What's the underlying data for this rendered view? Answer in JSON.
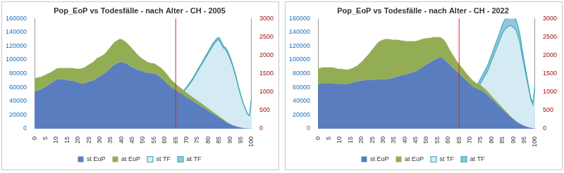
{
  "chart_data": [
    {
      "type": "area",
      "title": "Pop_EoP vs Todesfälle - nach Alter - CH - 2005",
      "x": [
        0,
        1,
        2,
        3,
        4,
        5,
        6,
        7,
        8,
        9,
        10,
        11,
        12,
        13,
        14,
        15,
        16,
        17,
        18,
        19,
        20,
        21,
        22,
        23,
        24,
        25,
        26,
        27,
        28,
        29,
        30,
        31,
        32,
        33,
        34,
        35,
        36,
        37,
        38,
        39,
        40,
        41,
        42,
        43,
        44,
        45,
        46,
        47,
        48,
        49,
        50,
        51,
        52,
        53,
        54,
        55,
        56,
        57,
        58,
        59,
        60,
        61,
        62,
        63,
        64,
        65,
        66,
        67,
        68,
        69,
        70,
        71,
        72,
        73,
        74,
        75,
        76,
        77,
        78,
        79,
        80,
        81,
        82,
        83,
        84,
        85,
        86,
        87,
        88,
        89,
        90,
        91,
        92,
        93,
        94,
        95,
        96,
        97,
        98,
        99,
        100
      ],
      "xlim": [
        0,
        100
      ],
      "xticks": [
        0,
        5,
        10,
        15,
        20,
        25,
        30,
        35,
        40,
        45,
        50,
        55,
        60,
        65,
        70,
        75,
        80,
        85,
        90,
        95,
        100
      ],
      "ylim": [
        0,
        160000
      ],
      "yticks": [
        0,
        20000,
        40000,
        60000,
        80000,
        100000,
        120000,
        140000,
        160000
      ],
      "y2lim": [
        0,
        3000
      ],
      "y2ticks": [
        0,
        500,
        1000,
        1500,
        2000,
        2500,
        3000
      ],
      "stacked": true,
      "grid": false,
      "legend": "bottom",
      "reference_line": {
        "x": 65,
        "color": "#e02020"
      },
      "series": [
        {
          "name": "st EoP",
          "color": "#5a7dbf",
          "values": [
            54000,
            55000,
            56000,
            57000,
            59000,
            61000,
            63000,
            65000,
            67000,
            69000,
            71000,
            72000,
            72000,
            72000,
            71000,
            71000,
            70000,
            70000,
            69000,
            68000,
            67000,
            66000,
            66000,
            66000,
            67000,
            68000,
            69000,
            70000,
            72000,
            74000,
            76000,
            78000,
            80000,
            82000,
            85000,
            88000,
            91000,
            93000,
            95000,
            96000,
            97000,
            96000,
            95000,
            93000,
            91000,
            89000,
            88000,
            86000,
            85000,
            84000,
            83000,
            82000,
            81000,
            81000,
            80000,
            80000,
            79000,
            77000,
            75000,
            72000,
            69000,
            66000,
            63000,
            60000,
            58000,
            56000,
            54000,
            52000,
            50000,
            48000,
            46000,
            44000,
            42000,
            40000,
            38000,
            36000,
            34000,
            32000,
            30000,
            28000,
            26000,
            24000,
            22000,
            20000,
            18000,
            16000,
            14000,
            12000,
            10000,
            8000,
            6500,
            5000,
            4000,
            3000,
            2200,
            1600,
            1100,
            700,
            450,
            300,
            500
          ]
        },
        {
          "name": "at EoP",
          "color": "#93ad55",
          "values": [
            19000,
            19000,
            19000,
            18000,
            18000,
            17000,
            17000,
            16000,
            16000,
            16000,
            16000,
            16000,
            16000,
            16000,
            17000,
            17000,
            18000,
            18000,
            19000,
            19000,
            20000,
            21000,
            22000,
            23000,
            24000,
            25000,
            26000,
            27000,
            28000,
            29000,
            28000,
            28000,
            28000,
            29000,
            30000,
            31000,
            32000,
            33000,
            33000,
            34000,
            33000,
            32000,
            31000,
            30000,
            29000,
            27000,
            25000,
            23000,
            21000,
            19000,
            18000,
            17000,
            16000,
            15000,
            15000,
            15000,
            14000,
            14000,
            14000,
            14000,
            14000,
            13000,
            12000,
            11000,
            10000,
            9000,
            8500,
            8000,
            7500,
            7000,
            6500,
            6000,
            5800,
            5500,
            5200,
            5000,
            4800,
            4500,
            4200,
            4000,
            3700,
            3400,
            3100,
            2800,
            2500,
            2200,
            1900,
            1600,
            1300,
            1000,
            800,
            600,
            450,
            350,
            250,
            180,
            120,
            80,
            50,
            30,
            40
          ]
        },
        {
          "name": "st TF",
          "color": "#d4ebf3",
          "axis": "y2",
          "values": [
            250,
            20,
            15,
            12,
            10,
            10,
            10,
            10,
            10,
            10,
            10,
            10,
            12,
            14,
            16,
            20,
            25,
            30,
            35,
            40,
            40,
            40,
            40,
            40,
            40,
            40,
            40,
            40,
            45,
            45,
            50,
            50,
            55,
            55,
            60,
            65,
            70,
            75,
            80,
            90,
            100,
            110,
            120,
            130,
            140,
            150,
            170,
            190,
            210,
            230,
            250,
            270,
            300,
            330,
            360,
            390,
            420,
            460,
            500,
            540,
            580,
            600,
            630,
            680,
            730,
            780,
            840,
            900,
            960,
            1030,
            1100,
            1180,
            1260,
            1350,
            1450,
            1550,
            1650,
            1750,
            1850,
            1950,
            2050,
            2150,
            2250,
            2330,
            2400,
            2420,
            2300,
            2200,
            2150,
            2050,
            1900,
            1750,
            1550,
            1350,
            1100,
            900,
            700,
            550,
            400,
            350,
            850
          ]
        },
        {
          "name": "at TF",
          "color": "#8fc8db",
          "axis": "y2",
          "values": [
            4,
            1,
            1,
            1,
            1,
            1,
            1,
            1,
            1,
            1,
            1,
            1,
            1,
            1,
            1,
            1,
            1,
            1,
            1,
            1,
            1,
            1,
            1,
            1,
            1,
            1,
            1,
            1,
            1,
            1,
            1,
            1,
            1,
            1,
            2,
            2,
            2,
            2,
            2,
            2,
            3,
            3,
            3,
            4,
            4,
            4,
            5,
            5,
            6,
            6,
            7,
            7,
            8,
            8,
            9,
            10,
            11,
            12,
            13,
            14,
            15,
            16,
            17,
            18,
            19,
            20,
            22,
            24,
            26,
            28,
            30,
            32,
            34,
            36,
            38,
            40,
            42,
            44,
            46,
            48,
            50,
            52,
            54,
            56,
            58,
            60,
            58,
            56,
            54,
            52,
            50,
            45,
            40,
            35,
            30,
            25,
            20,
            15,
            10,
            8,
            15
          ]
        }
      ]
    },
    {
      "type": "area",
      "title": "Pop_EoP vs Todesfälle - nach Alter - CH - 2022",
      "x": [
        0,
        1,
        2,
        3,
        4,
        5,
        6,
        7,
        8,
        9,
        10,
        11,
        12,
        13,
        14,
        15,
        16,
        17,
        18,
        19,
        20,
        21,
        22,
        23,
        24,
        25,
        26,
        27,
        28,
        29,
        30,
        31,
        32,
        33,
        34,
        35,
        36,
        37,
        38,
        39,
        40,
        41,
        42,
        43,
        44,
        45,
        46,
        47,
        48,
        49,
        50,
        51,
        52,
        53,
        54,
        55,
        56,
        57,
        58,
        59,
        60,
        61,
        62,
        63,
        64,
        65,
        66,
        67,
        68,
        69,
        70,
        71,
        72,
        73,
        74,
        75,
        76,
        77,
        78,
        79,
        80,
        81,
        82,
        83,
        84,
        85,
        86,
        87,
        88,
        89,
        90,
        91,
        92,
        93,
        94,
        95,
        96,
        97,
        98,
        99,
        100
      ],
      "xlim": [
        0,
        100
      ],
      "xticks": [
        0,
        5,
        10,
        15,
        20,
        25,
        30,
        35,
        40,
        45,
        50,
        55,
        60,
        65,
        70,
        75,
        80,
        85,
        90,
        95,
        100
      ],
      "ylim": [
        0,
        160000
      ],
      "yticks": [
        0,
        20000,
        40000,
        60000,
        80000,
        100000,
        120000,
        140000,
        160000
      ],
      "y2lim": [
        0,
        3000
      ],
      "y2ticks": [
        0,
        500,
        1000,
        1500,
        2000,
        2500,
        3000
      ],
      "stacked": true,
      "grid": false,
      "legend": "bottom",
      "reference_line": {
        "x": 65,
        "color": "#e02020"
      },
      "series": [
        {
          "name": "st EoP",
          "color": "#5a7dbf",
          "values": [
            64000,
            65000,
            66000,
            66000,
            66000,
            66000,
            66000,
            66000,
            65000,
            65000,
            65000,
            65000,
            65000,
            65000,
            65000,
            66000,
            67000,
            68000,
            68000,
            69000,
            70000,
            70000,
            71000,
            71000,
            71000,
            71000,
            71000,
            72000,
            72000,
            72000,
            72000,
            72000,
            72000,
            73000,
            73000,
            74000,
            75000,
            76000,
            77000,
            78000,
            78000,
            79000,
            80000,
            81000,
            82000,
            83000,
            85000,
            87000,
            89000,
            91000,
            93000,
            95000,
            97000,
            99000,
            101000,
            102000,
            103000,
            103000,
            101000,
            98000,
            95000,
            92000,
            89000,
            86000,
            83000,
            80000,
            77000,
            74000,
            71000,
            68000,
            65000,
            62000,
            60000,
            58000,
            57000,
            56000,
            54000,
            52000,
            49000,
            46000,
            43000,
            40000,
            37000,
            34000,
            31000,
            28000,
            25000,
            22000,
            19000,
            16000,
            13500,
            11000,
            9000,
            7000,
            5500,
            4000,
            3000,
            2000,
            1300,
            800,
            600
          ]
        },
        {
          "name": "at EoP",
          "color": "#93ad55",
          "values": [
            23000,
            23000,
            23000,
            23000,
            23000,
            23000,
            23000,
            23000,
            23000,
            22000,
            22000,
            22000,
            21000,
            21000,
            21000,
            21000,
            21000,
            22000,
            23000,
            25000,
            27000,
            30000,
            33000,
            36000,
            40000,
            44000,
            48000,
            51000,
            54000,
            56000,
            57000,
            58000,
            58000,
            57000,
            56000,
            55000,
            54000,
            53000,
            51000,
            50000,
            49000,
            48000,
            47000,
            46000,
            45000,
            44000,
            43000,
            42000,
            41000,
            40000,
            38000,
            37000,
            35000,
            34000,
            32000,
            31000,
            30000,
            29000,
            28000,
            27000,
            24000,
            21000,
            19000,
            17000,
            15000,
            14000,
            13000,
            12000,
            11000,
            10000,
            9500,
            9000,
            8500,
            8000,
            7500,
            7000,
            6500,
            6000,
            5500,
            5000,
            4500,
            4000,
            3600,
            3200,
            2800,
            2400,
            2000,
            1700,
            1400,
            1100,
            900,
            700,
            550,
            400,
            300,
            220,
            150,
            100,
            60,
            40,
            30
          ]
        },
        {
          "name": "st TF",
          "color": "#d4ebf3",
          "axis": "y2",
          "values": [
            250,
            15,
            8,
            6,
            5,
            5,
            5,
            5,
            5,
            5,
            5,
            6,
            7,
            8,
            10,
            12,
            15,
            18,
            20,
            22,
            22,
            22,
            22,
            22,
            22,
            23,
            24,
            25,
            26,
            27,
            28,
            30,
            32,
            34,
            36,
            38,
            40,
            43,
            46,
            50,
            55,
            60,
            65,
            70,
            75,
            85,
            95,
            105,
            120,
            135,
            150,
            170,
            190,
            215,
            240,
            270,
            300,
            330,
            360,
            390,
            420,
            450,
            480,
            510,
            550,
            600,
            650,
            700,
            760,
            820,
            880,
            940,
            1000,
            1070,
            1150,
            1250,
            1350,
            1450,
            1550,
            1700,
            1850,
            2000,
            2150,
            2300,
            2450,
            2600,
            2700,
            2750,
            2800,
            2800,
            2750,
            2700,
            2550,
            2350,
            2000,
            1700,
            1400,
            1100,
            800,
            650,
            1150
          ]
        },
        {
          "name": "at TF",
          "color": "#8fc8db",
          "axis": "y2",
          "values": [
            5,
            1,
            1,
            1,
            1,
            1,
            1,
            1,
            1,
            1,
            1,
            1,
            1,
            1,
            1,
            2,
            2,
            2,
            2,
            2,
            2,
            2,
            2,
            2,
            2,
            2,
            2,
            2,
            2,
            2,
            3,
            3,
            3,
            3,
            3,
            3,
            4,
            4,
            4,
            5,
            5,
            6,
            6,
            7,
            8,
            9,
            10,
            11,
            12,
            14,
            15,
            17,
            19,
            21,
            23,
            25,
            28,
            31,
            34,
            37,
            40,
            44,
            48,
            52,
            56,
            60,
            65,
            70,
            75,
            80,
            85,
            90,
            95,
            100,
            110,
            120,
            130,
            140,
            150,
            160,
            170,
            180,
            190,
            200,
            220,
            240,
            260,
            280,
            300,
            320,
            320,
            300,
            260,
            220,
            180,
            140,
            100,
            70,
            50,
            40,
            60
          ]
        }
      ]
    }
  ]
}
